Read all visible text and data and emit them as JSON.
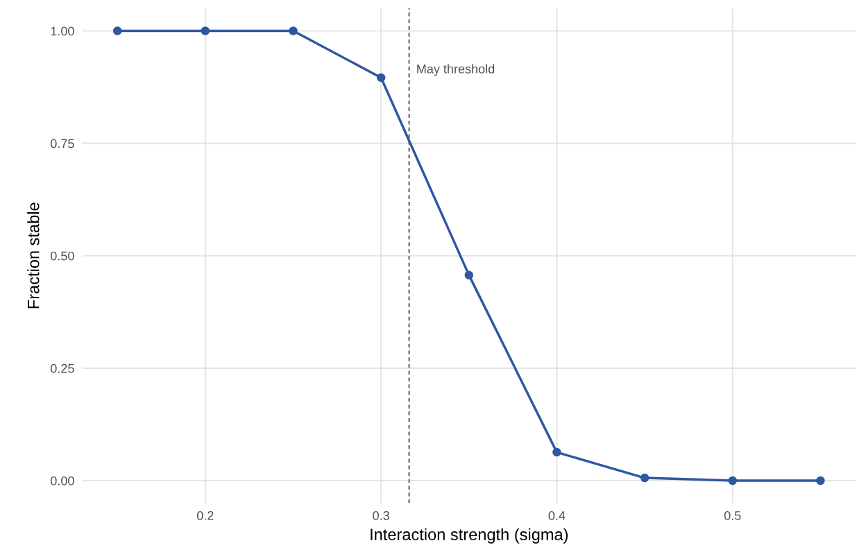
{
  "chart_data": {
    "type": "line",
    "xlabel": "Interaction strength (sigma)",
    "ylabel": "Fraction stable",
    "x": [
      0.15,
      0.2,
      0.25,
      0.3,
      0.35,
      0.4,
      0.45,
      0.5,
      0.55
    ],
    "series": [
      {
        "color": "#2e57a3",
        "values": [
          1.0,
          1.0,
          1.0,
          0.896,
          0.457,
          0.063,
          0.006,
          0.0,
          0.0
        ]
      }
    ],
    "marker": "circle",
    "line_style": "solid",
    "xlim": [
      0.13,
      0.57
    ],
    "ylim": [
      -0.05,
      1.05
    ],
    "xticks": [
      0.2,
      0.3,
      0.4,
      0.5
    ],
    "yticks": [
      {
        "value": 0,
        "label": "0.00"
      },
      {
        "value": 0.25,
        "label": "0.25"
      },
      {
        "value": 0.5,
        "label": "0.50"
      },
      {
        "value": 0.75,
        "label": "0.75"
      },
      {
        "value": 1,
        "label": "1.00"
      }
    ],
    "ref_lines": [
      {
        "axis": "x",
        "value": 0.316,
        "label": "May threshold",
        "color": "#808080",
        "line_style": "dashed"
      }
    ],
    "grid": true
  }
}
